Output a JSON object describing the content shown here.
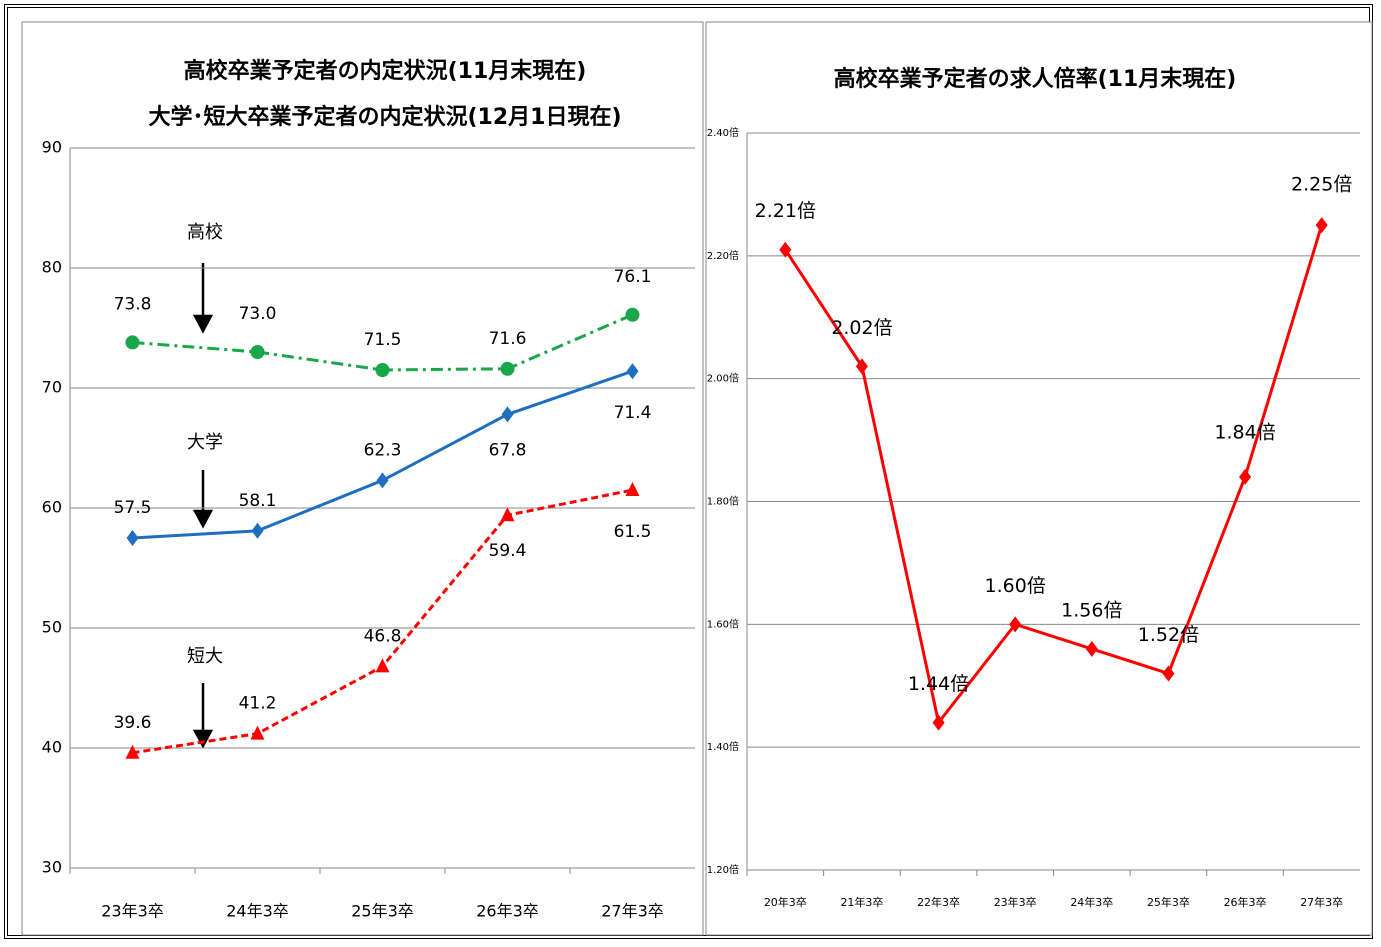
{
  "chart_data": [
    {
      "type": "line",
      "title": "高校卒業予定者の内定状況(11月末現在)",
      "subtitle": "大学･短大卒業予定者の内定状況(12月1日現在)",
      "categories": [
        "23年3卒",
        "24年3卒",
        "25年3卒",
        "26年3卒",
        "27年3卒"
      ],
      "series": [
        {
          "name": "高校",
          "color": "#1aa64a",
          "marker": "circle",
          "line_style": "dashdot",
          "values": [
            73.8,
            73.0,
            71.5,
            71.6,
            76.1
          ],
          "value_labels": [
            "73.8",
            "73.0",
            "71.5",
            "71.6",
            "76.1"
          ]
        },
        {
          "name": "大学",
          "color": "#1f6fc0",
          "marker": "diamond",
          "line_style": "solid",
          "values": [
            57.5,
            58.1,
            62.3,
            67.8,
            71.4
          ]
        },
        {
          "name": "短大",
          "color": "#ff0000",
          "marker": "triangle",
          "line_style": "dashed",
          "values": [
            39.6,
            41.2,
            46.8,
            59.4,
            61.5
          ]
        }
      ],
      "ylim": [
        30,
        90
      ],
      "yticks": [
        30,
        40,
        50,
        60,
        70,
        80,
        90
      ],
      "grid": true
    },
    {
      "type": "line",
      "title": "高校卒業予定者の求人倍率(11月末現在)",
      "categories": [
        "20年3卒",
        "21年3卒",
        "22年3卒",
        "23年3卒",
        "24年3卒",
        "25年3卒",
        "26年3卒",
        "27年3卒"
      ],
      "series": [
        {
          "name": "求人倍率",
          "color": "#ff0000",
          "marker": "diamond",
          "line_style": "solid",
          "values": [
            2.21,
            2.02,
            1.44,
            1.6,
            1.56,
            1.52,
            1.84,
            2.25
          ],
          "value_labels": [
            "2.21倍",
            "2.02倍",
            "1.44倍",
            "1.60倍",
            "1.56倍",
            "1.52倍",
            "1.84倍",
            "2.25倍"
          ]
        }
      ],
      "ylim": [
        1.2,
        2.4
      ],
      "yticks": [
        {
          "value": 1.2,
          "label": "1.20倍"
        },
        {
          "value": 1.4,
          "label": "1.40倍"
        },
        {
          "value": 1.6,
          "label": "1.60倍"
        },
        {
          "value": 1.8,
          "label": "1.80倍"
        },
        {
          "value": 2.0,
          "label": "2.00倍"
        },
        {
          "value": 2.2,
          "label": "2.20倍"
        },
        {
          "value": 2.4,
          "label": "2.40倍"
        }
      ],
      "grid": true
    }
  ]
}
